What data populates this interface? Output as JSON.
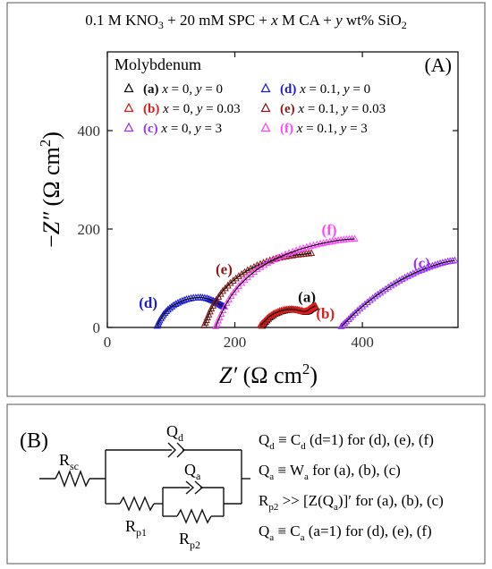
{
  "header": {
    "title_parts": [
      "0.1 M KNO",
      "3",
      " + 20 mM SPC + ",
      "x",
      " M CA + ",
      "y",
      " wt% SiO",
      "2"
    ]
  },
  "panel_a": {
    "metal": "Molybdenum",
    "label": "(A)"
  },
  "chart_data": {
    "type": "scatter",
    "x_axis": {
      "label_var": "Z′",
      "label_unit_open": " (Ω cm",
      "label_unit_sup": "2",
      "label_unit_close": ")",
      "range": [
        0,
        550
      ],
      "ticks": [
        0,
        200,
        400
      ]
    },
    "y_axis": {
      "label_prefix": "−",
      "label_var": "Z″",
      "label_unit_open": " (Ω cm",
      "label_unit_sup": "2",
      "label_unit_close": ")",
      "range": [
        0,
        560
      ],
      "ticks": [
        0,
        200,
        400
      ]
    },
    "legend_placement": "top",
    "series": [
      {
        "id": "a",
        "legend": {
          "tag": "(a)",
          "x": "x = 0",
          "y": "y = 0"
        },
        "color": "#111111",
        "marker": "open-triangle",
        "points": [
          [
            243,
            3
          ],
          [
            248,
            11
          ],
          [
            255,
            20
          ],
          [
            263,
            27
          ],
          [
            272,
            32
          ],
          [
            281,
            35
          ],
          [
            290,
            36
          ],
          [
            298,
            35
          ],
          [
            305,
            33
          ],
          [
            311,
            31
          ],
          [
            316,
            33
          ],
          [
            320,
            37
          ],
          [
            324,
            40
          ],
          [
            327,
            42
          ]
        ],
        "label_at": [
          313,
          52
        ]
      },
      {
        "id": "b",
        "legend": {
          "tag": "(b)",
          "x": "x = 0",
          "y": "y = 0.03"
        },
        "color": "#e01b1b",
        "marker": "open-triangle",
        "points": [
          [
            240,
            4
          ],
          [
            246,
            12
          ],
          [
            253,
            21
          ],
          [
            261,
            28
          ],
          [
            270,
            33
          ],
          [
            279,
            36
          ],
          [
            288,
            37
          ],
          [
            296,
            36
          ],
          [
            303,
            34
          ],
          [
            309,
            32
          ],
          [
            314,
            34
          ],
          [
            318,
            38
          ],
          [
            322,
            41
          ],
          [
            326,
            44
          ]
        ],
        "label_at": [
          342,
          18
        ]
      },
      {
        "id": "c",
        "legend": {
          "tag": "(c)",
          "x": "x = 0",
          "y": "y = 3"
        },
        "color": "#9b30ff",
        "marker": "open-triangle",
        "points": [
          [
            367,
            2
          ],
          [
            375,
            12
          ],
          [
            385,
            25
          ],
          [
            396,
            38
          ],
          [
            408,
            51
          ],
          [
            420,
            63
          ],
          [
            432,
            74
          ],
          [
            445,
            85
          ],
          [
            458,
            95
          ],
          [
            471,
            104
          ],
          [
            484,
            112
          ],
          [
            497,
            119
          ],
          [
            510,
            125
          ],
          [
            522,
            130
          ],
          [
            534,
            134
          ],
          [
            545,
            136
          ]
        ],
        "label_at": [
          493,
          121
        ]
      },
      {
        "id": "d",
        "legend": {
          "tag": "(d)",
          "x": "x = 0.1",
          "y": "y = 0"
        },
        "color": "#1c1cd6",
        "marker": "open-triangle",
        "points": [
          [
            78,
            3
          ],
          [
            82,
            14
          ],
          [
            88,
            26
          ],
          [
            95,
            36
          ],
          [
            104,
            45
          ],
          [
            114,
            52
          ],
          [
            124,
            57
          ],
          [
            135,
            60
          ],
          [
            146,
            61
          ],
          [
            156,
            59
          ],
          [
            164,
            55
          ],
          [
            171,
            51
          ],
          [
            176,
            47
          ],
          [
            180,
            44
          ],
          [
            183,
            42
          ]
        ],
        "label_at": [
          64,
          40
        ]
      },
      {
        "id": "e",
        "legend": {
          "tag": "(e)",
          "x": "x = 0.1",
          "y": "y = 0.03"
        },
        "color": "#8b1a1a",
        "marker": "open-triangle",
        "points": [
          [
            152,
            4
          ],
          [
            157,
            20
          ],
          [
            163,
            38
          ],
          [
            171,
            56
          ],
          [
            181,
            74
          ],
          [
            193,
            90
          ],
          [
            206,
            104
          ],
          [
            220,
            116
          ],
          [
            235,
            126
          ],
          [
            250,
            134
          ],
          [
            265,
            140
          ],
          [
            280,
            144
          ],
          [
            295,
            147
          ],
          [
            308,
            149
          ],
          [
            320,
            151
          ]
        ],
        "label_at": [
          183,
          108
        ]
      },
      {
        "id": "f",
        "legend": {
          "tag": "(f)",
          "x": "x = 0.1",
          "y": "y = 3"
        },
        "color": "#ff44ff",
        "marker": "open-triangle",
        "points": [
          [
            170,
            2
          ],
          [
            176,
            20
          ],
          [
            184,
            42
          ],
          [
            194,
            64
          ],
          [
            206,
            84
          ],
          [
            220,
            102
          ],
          [
            235,
            118
          ],
          [
            251,
            131
          ],
          [
            268,
            142
          ],
          [
            285,
            151
          ],
          [
            302,
            159
          ],
          [
            318,
            165
          ],
          [
            334,
            170
          ],
          [
            349,
            174
          ],
          [
            362,
            177
          ],
          [
            375,
            179
          ],
          [
            388,
            180
          ]
        ],
        "label_at": [
          348,
          188
        ]
      }
    ]
  },
  "panel_b": {
    "label": "(B)",
    "components": {
      "rsc": "R",
      "rsc_sub": "sc",
      "qd": "Q",
      "qd_sub": "d",
      "qa": "Q",
      "qa_sub": "a",
      "rp1": "R",
      "rp1_sub": "p1",
      "rp2": "R",
      "rp2_sub": "p2"
    },
    "notes": [
      [
        [
          "Q",
          ""
        ],
        [
          "d",
          "sub"
        ],
        [
          " ≡ C",
          ""
        ],
        [
          "d",
          "sub"
        ],
        [
          " (d=1) for (d), (e), (f)",
          ""
        ]
      ],
      [
        [
          "Q",
          ""
        ],
        [
          "a",
          "sub"
        ],
        [
          " ≡ W",
          ""
        ],
        [
          "a",
          "sub"
        ],
        [
          " for (a), (b), (c)",
          ""
        ]
      ],
      [
        [
          "R",
          ""
        ],
        [
          "p2",
          "sub"
        ],
        [
          " >> [Z(Q",
          ""
        ],
        [
          "a",
          "sub"
        ],
        [
          ")]′ for (a), (b), (c)",
          ""
        ]
      ],
      [
        [
          "Q",
          ""
        ],
        [
          "a",
          "sub"
        ],
        [
          " ≡ C",
          ""
        ],
        [
          "a",
          "sub"
        ],
        [
          " (a=1) for (d), (e), (f)",
          ""
        ]
      ]
    ]
  }
}
